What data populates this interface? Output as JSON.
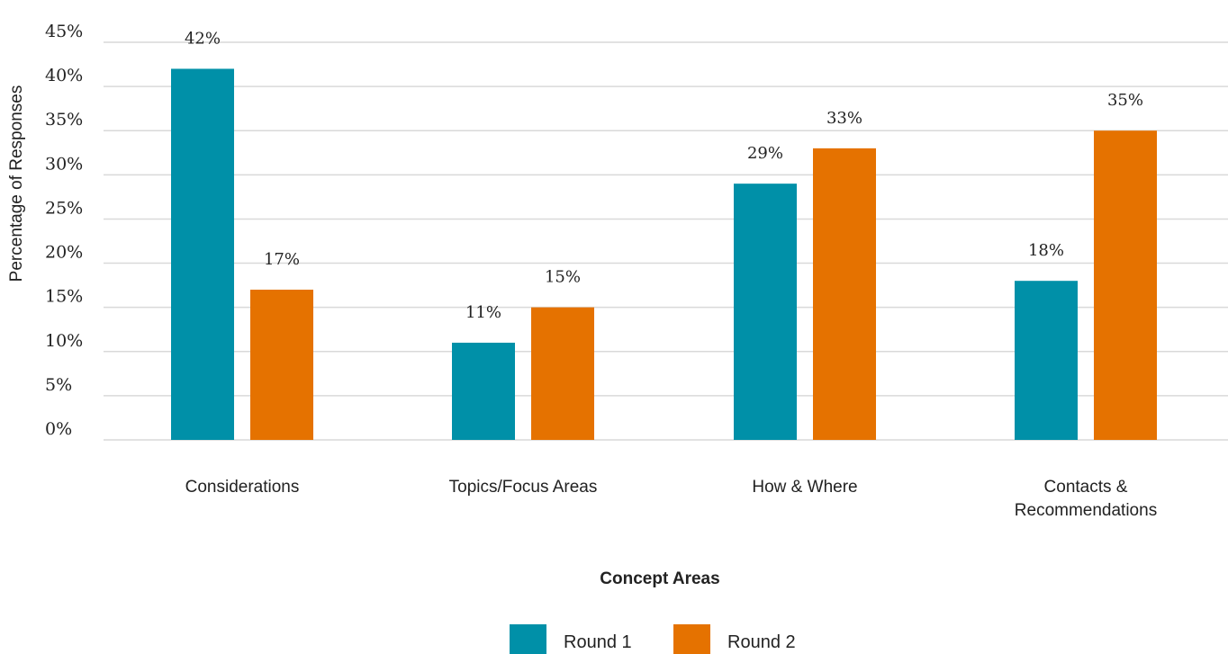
{
  "chart_data": {
    "type": "bar",
    "categories": [
      "Considerations",
      "Topics/Focus Areas",
      "How & Where",
      "Contacts & Recommendations"
    ],
    "category_lines": [
      [
        "Considerations"
      ],
      [
        "Topics/Focus Areas"
      ],
      [
        "How & Where"
      ],
      [
        "Contacts &",
        "Recommendations"
      ]
    ],
    "series": [
      {
        "name": "Round 1",
        "color": "#0090a8",
        "values": [
          42,
          11,
          29,
          18
        ],
        "labels": [
          "42%",
          "11%",
          "29%",
          "18%"
        ]
      },
      {
        "name": "Round 2",
        "color": "#e57200",
        "values": [
          17,
          15,
          33,
          35
        ],
        "labels": [
          "17%",
          "15%",
          "33%",
          "35%"
        ]
      }
    ],
    "xlabel": "Concept Areas",
    "ylabel": "Percentage of Responses",
    "ylim": [
      0,
      45
    ],
    "yticks": [
      0,
      5,
      10,
      15,
      20,
      25,
      30,
      35,
      40,
      45
    ],
    "ytick_labels": [
      "0%",
      "5%",
      "10%",
      "15%",
      "20%",
      "25%",
      "30%",
      "35%",
      "40%",
      "45%"
    ],
    "grid": true,
    "legend_position": "bottom-center"
  }
}
